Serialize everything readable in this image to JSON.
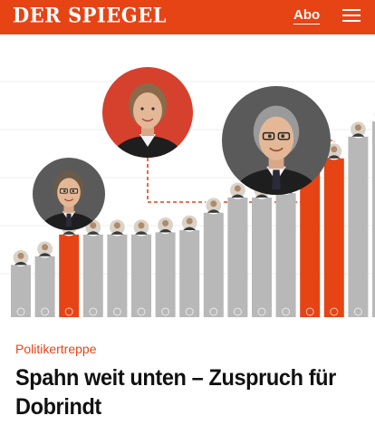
{
  "header": {
    "logo": "DER SPIEGEL",
    "abo_label": "Abo",
    "menu_icon": "hamburger-menu-icon",
    "background": "#e64415"
  },
  "teaser": {
    "kicker": "Politikertreppe",
    "headline": "Spahn weit unten – Zuspruch für Dobrindt"
  },
  "graphic": {
    "accent_color": "#e64415",
    "bar_color": "#b8b8b8",
    "bars": [
      {
        "rank": 1,
        "level": 0.24,
        "highlight": false
      },
      {
        "rank": 2,
        "level": 0.28,
        "highlight": false
      },
      {
        "rank": 3,
        "level": 0.38,
        "highlight": true
      },
      {
        "rank": 4,
        "level": 0.38,
        "highlight": false
      },
      {
        "rank": 5,
        "level": 0.38,
        "highlight": false
      },
      {
        "rank": 6,
        "level": 0.38,
        "highlight": false
      },
      {
        "rank": 7,
        "level": 0.39,
        "highlight": false
      },
      {
        "rank": 8,
        "level": 0.4,
        "highlight": false
      },
      {
        "rank": 9,
        "level": 0.48,
        "highlight": false
      },
      {
        "rank": 10,
        "level": 0.55,
        "highlight": false
      },
      {
        "rank": 11,
        "level": 0.55,
        "highlight": false
      },
      {
        "rank": 12,
        "level": 0.57,
        "highlight": false
      },
      {
        "rank": 13,
        "level": 0.71,
        "highlight": true
      },
      {
        "rank": 14,
        "level": 0.73,
        "highlight": true
      },
      {
        "rank": 15,
        "level": 0.83,
        "highlight": false
      },
      {
        "rank": 16,
        "level": 0.9,
        "highlight": false
      }
    ],
    "portraits": [
      {
        "name": "portrait-spahn",
        "bg": "#5a5a5a",
        "target_rank": 3
      },
      {
        "name": "portrait-bas",
        "bg": "#d6412e",
        "target_rank": 13
      },
      {
        "name": "portrait-dobrindt",
        "bg": "#5a5a5a",
        "target_rank": 14
      }
    ]
  }
}
